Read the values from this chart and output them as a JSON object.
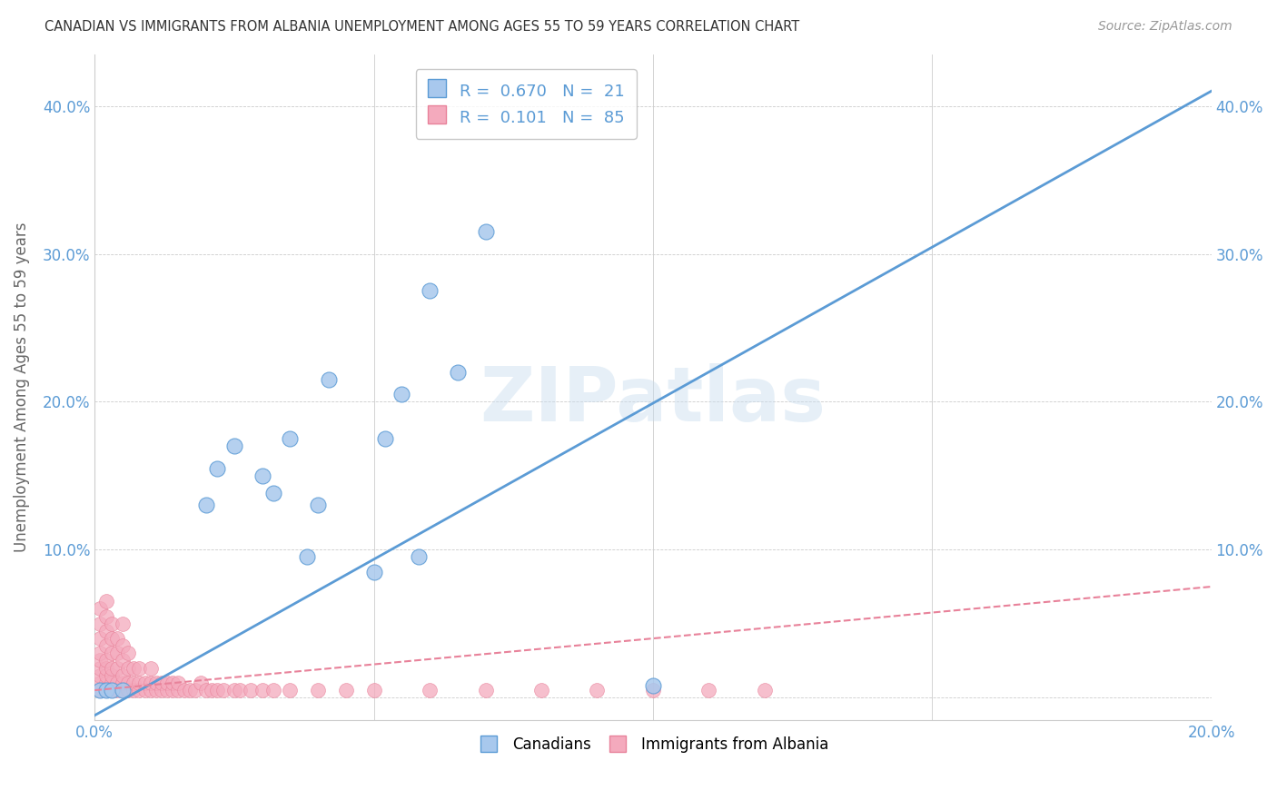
{
  "title": "CANADIAN VS IMMIGRANTS FROM ALBANIA UNEMPLOYMENT AMONG AGES 55 TO 59 YEARS CORRELATION CHART",
  "source": "Source: ZipAtlas.com",
  "ylabel": "Unemployment Among Ages 55 to 59 years",
  "xlim": [
    0.0,
    0.2
  ],
  "ylim": [
    -0.015,
    0.435
  ],
  "xticks": [
    0.0,
    0.05,
    0.1,
    0.15,
    0.2
  ],
  "xtick_labels": [
    "0.0%",
    "",
    "",
    "",
    "20.0%"
  ],
  "yticks_left": [
    0.0,
    0.1,
    0.2,
    0.3,
    0.4
  ],
  "ytick_labels_left": [
    "",
    "10.0%",
    "20.0%",
    "30.0%",
    "40.0%"
  ],
  "ytick_labels_right": [
    "",
    "10.0%",
    "20.0%",
    "30.0%",
    "40.0%"
  ],
  "R_canadian": 0.67,
  "N_canadian": 21,
  "R_albanian": 0.101,
  "N_albanian": 85,
  "canadian_color": "#A8C8ED",
  "albanian_color": "#F4AABD",
  "canadian_line_color": "#5B9BD5",
  "albanian_line_color": "#E8829A",
  "watermark": "ZIPatlas",
  "canadians_x": [
    0.001,
    0.002,
    0.003,
    0.005,
    0.02,
    0.022,
    0.025,
    0.03,
    0.032,
    0.035,
    0.038,
    0.04,
    0.042,
    0.05,
    0.052,
    0.055,
    0.058,
    0.06,
    0.065,
    0.07,
    0.1
  ],
  "canadians_y": [
    0.005,
    0.005,
    0.005,
    0.005,
    0.13,
    0.155,
    0.17,
    0.15,
    0.138,
    0.175,
    0.095,
    0.13,
    0.215,
    0.085,
    0.175,
    0.205,
    0.095,
    0.275,
    0.22,
    0.315,
    0.008
  ],
  "albanians_x": [
    0.001,
    0.001,
    0.001,
    0.001,
    0.001,
    0.001,
    0.001,
    0.001,
    0.001,
    0.002,
    0.002,
    0.002,
    0.002,
    0.002,
    0.002,
    0.002,
    0.002,
    0.002,
    0.003,
    0.003,
    0.003,
    0.003,
    0.003,
    0.003,
    0.003,
    0.004,
    0.004,
    0.004,
    0.004,
    0.004,
    0.005,
    0.005,
    0.005,
    0.005,
    0.005,
    0.005,
    0.006,
    0.006,
    0.006,
    0.006,
    0.007,
    0.007,
    0.007,
    0.008,
    0.008,
    0.008,
    0.009,
    0.009,
    0.01,
    0.01,
    0.01,
    0.011,
    0.011,
    0.012,
    0.012,
    0.013,
    0.013,
    0.014,
    0.014,
    0.015,
    0.015,
    0.016,
    0.017,
    0.018,
    0.019,
    0.02,
    0.021,
    0.022,
    0.023,
    0.025,
    0.026,
    0.028,
    0.03,
    0.032,
    0.035,
    0.04,
    0.045,
    0.05,
    0.06,
    0.07,
    0.08,
    0.09,
    0.1,
    0.11,
    0.12
  ],
  "albanians_y": [
    0.005,
    0.01,
    0.015,
    0.02,
    0.025,
    0.03,
    0.04,
    0.05,
    0.06,
    0.005,
    0.01,
    0.015,
    0.02,
    0.025,
    0.035,
    0.045,
    0.055,
    0.065,
    0.005,
    0.01,
    0.015,
    0.02,
    0.03,
    0.04,
    0.05,
    0.005,
    0.01,
    0.02,
    0.03,
    0.04,
    0.005,
    0.01,
    0.015,
    0.025,
    0.035,
    0.05,
    0.005,
    0.01,
    0.02,
    0.03,
    0.005,
    0.01,
    0.02,
    0.005,
    0.01,
    0.02,
    0.005,
    0.01,
    0.005,
    0.01,
    0.02,
    0.005,
    0.01,
    0.005,
    0.01,
    0.005,
    0.01,
    0.005,
    0.01,
    0.005,
    0.01,
    0.005,
    0.005,
    0.005,
    0.01,
    0.005,
    0.005,
    0.005,
    0.005,
    0.005,
    0.005,
    0.005,
    0.005,
    0.005,
    0.005,
    0.005,
    0.005,
    0.005,
    0.005,
    0.005,
    0.005,
    0.005,
    0.005,
    0.005,
    0.005
  ],
  "can_line_x0": 0.0,
  "can_line_y0": -0.012,
  "can_line_x1": 0.2,
  "can_line_y1": 0.41,
  "alb_line_x0": 0.0,
  "alb_line_y0": 0.005,
  "alb_line_x1": 0.2,
  "alb_line_y1": 0.075
}
